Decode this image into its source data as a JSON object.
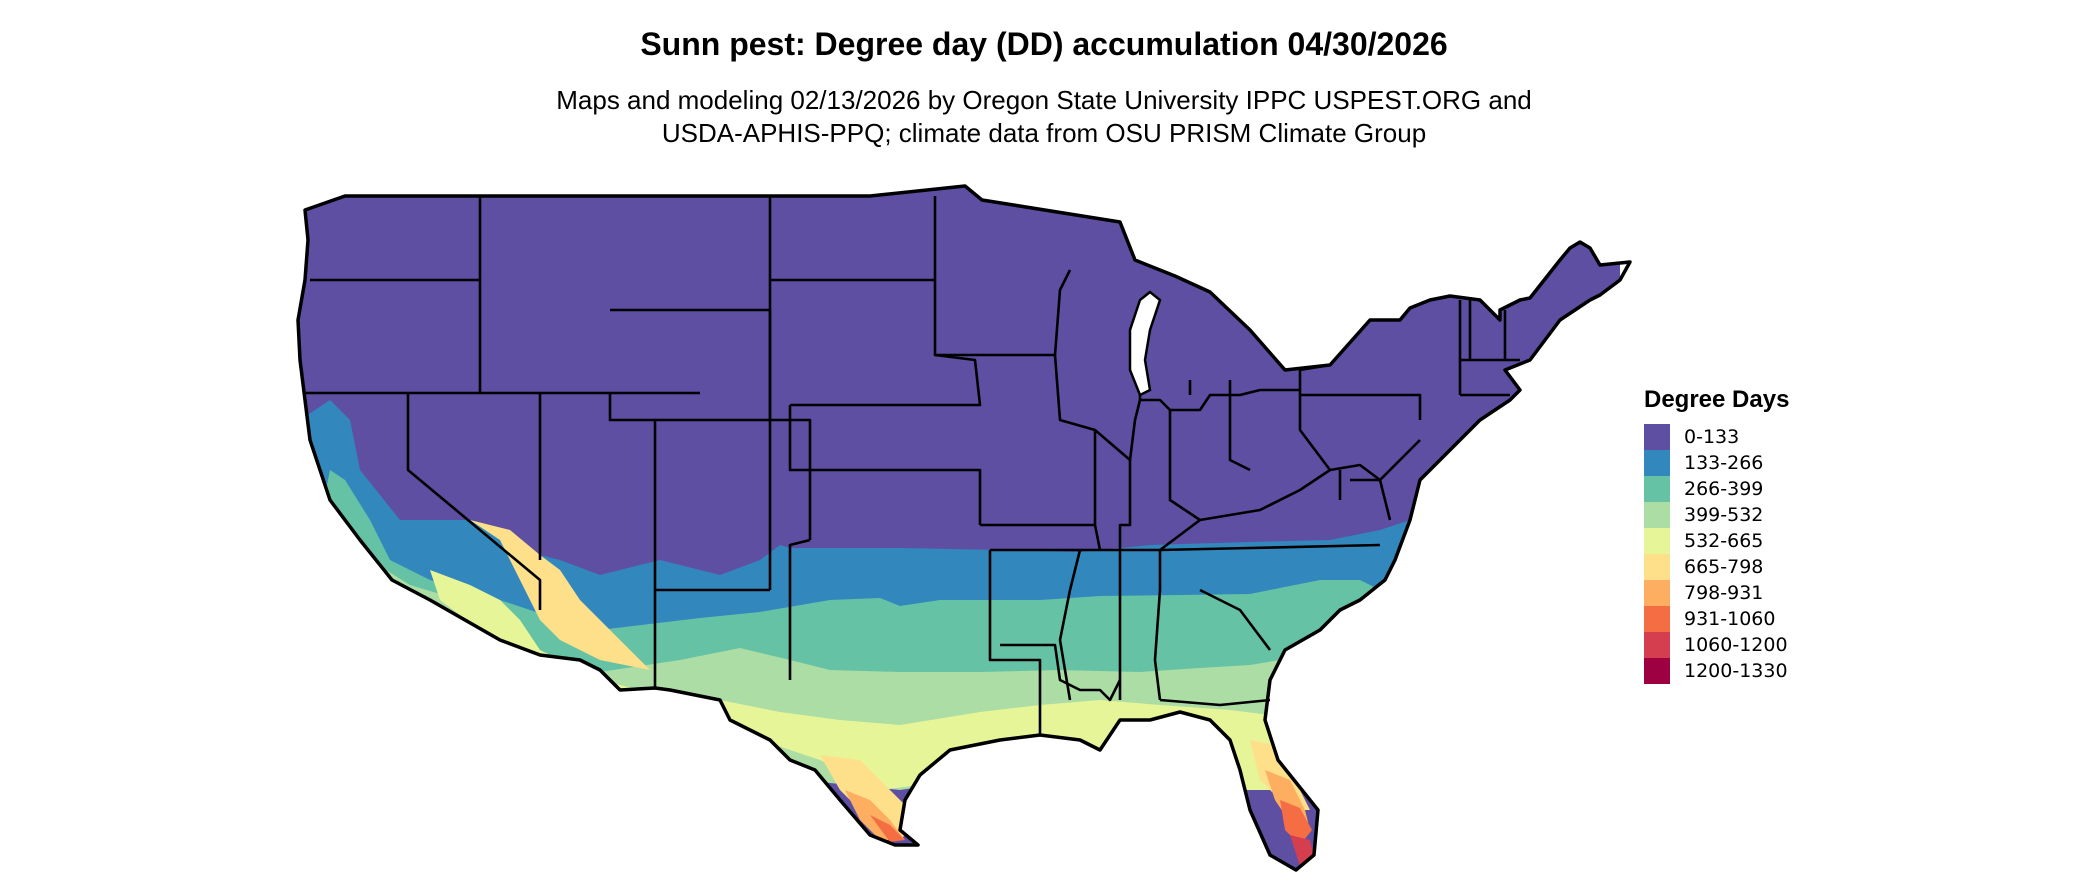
{
  "title": "Sunn pest: Degree day (DD) accumulation 04/30/2026",
  "subtitle_line1": "Maps and modeling 02/13/2026 by Oregon State University IPPC USPEST.ORG and",
  "subtitle_line2": "USDA-APHIS-PPQ; climate data from OSU PRISM Climate Group",
  "legend": {
    "title": "Degree Days",
    "items": [
      {
        "label": "0-133",
        "color": "#5e4fa2"
      },
      {
        "label": "133-266",
        "color": "#3288bd"
      },
      {
        "label": "266-399",
        "color": "#66c2a5"
      },
      {
        "label": "399-532",
        "color": "#abdda4"
      },
      {
        "label": "532-665",
        "color": "#e6f598"
      },
      {
        "label": "665-798",
        "color": "#fee08b"
      },
      {
        "label": "798-931",
        "color": "#fdae61"
      },
      {
        "label": "931-1060",
        "color": "#f46d43"
      },
      {
        "label": "1060-1200",
        "color": "#d53e4f"
      },
      {
        "label": "1200-1330",
        "color": "#9e0142"
      }
    ]
  }
}
